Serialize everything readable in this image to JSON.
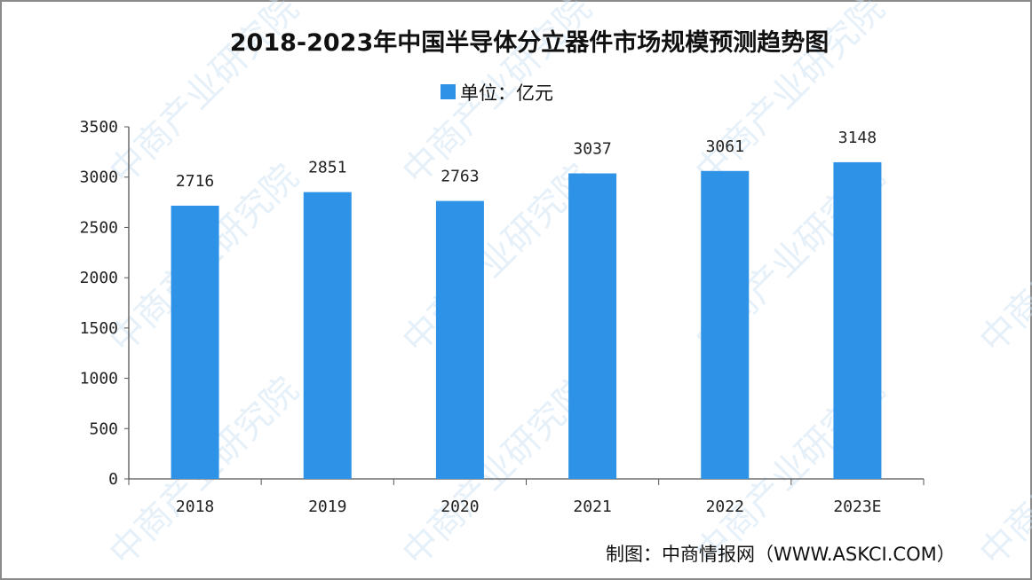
{
  "chart_data": {
    "type": "bar",
    "title": "2018-2023年中国半导体分立器件市场规模预测趋势图",
    "legend": {
      "label": "单位：亿元",
      "position": "top"
    },
    "categories": [
      "2018",
      "2019",
      "2020",
      "2021",
      "2022",
      "2023E"
    ],
    "series": [
      {
        "name": "单位：亿元",
        "values": [
          2716,
          2851,
          2763,
          3037,
          3061,
          3148
        ]
      }
    ],
    "ylim": [
      0,
      3500
    ],
    "yticks": [
      0,
      500,
      1000,
      1500,
      2000,
      2500,
      3000,
      3500
    ],
    "grid": false,
    "bar_color": "#2e93e6",
    "data_labels": true
  },
  "source": "制图：中商情报网（WWW.ASKCI.COM）",
  "watermark": "中商产业研究院"
}
